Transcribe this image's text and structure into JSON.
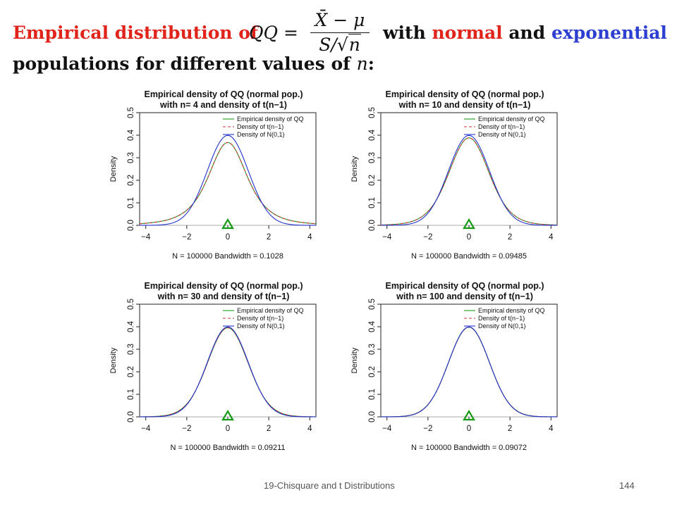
{
  "slide": {
    "title_part1": "Empirical distribution of",
    "formula_lhs": "QQ =",
    "formula_num": "X̄ − μ",
    "formula_den_s": "S/",
    "formula_den_sqrt": "√",
    "formula_den_n": "n",
    "title_with": "with",
    "title_normal": "normal",
    "title_and": "and",
    "title_exponential": "exponential",
    "title_line2": "populations for different values of",
    "title_line2_var": "n",
    "title_line2_colon": ":"
  },
  "footer": {
    "left": "19-Chisquare and t Distributions",
    "right": "144"
  },
  "colors": {
    "empirical": "#1a9a1a",
    "t_density": "#cc3333",
    "normal": "#2233cc",
    "triangle": "#119911",
    "title_red": "#e0241b",
    "title_blue": "#2c3fd1"
  },
  "chart_data": [
    {
      "type": "line",
      "title": "Empirical density of QQ (normal pop.)",
      "subtitle": "with n= 4  and density of t(n−1)",
      "xlabel": "N = 100000   Bandwidth = 0.1028",
      "ylabel": "Density",
      "xlim": [
        -4.3,
        4.3
      ],
      "ylim": [
        0,
        0.5
      ],
      "xticks": [
        -4,
        -2,
        0,
        2,
        4
      ],
      "yticks": [
        0.0,
        0.1,
        0.2,
        0.3,
        0.4,
        0.5
      ],
      "df": 3,
      "marker_x": 0,
      "legend": [
        "Empirical density of QQ",
        "Density of t(n−1)",
        "Density of N(0,1)"
      ],
      "legend_position": "top-right",
      "series": [
        {
          "name": "Empirical density of QQ",
          "x": [
            -4,
            -3,
            -2,
            -1,
            0,
            1,
            2,
            3,
            4
          ],
          "values": [
            0.004,
            0.023,
            0.068,
            0.207,
            0.368,
            0.207,
            0.068,
            0.023,
            0.004
          ]
        },
        {
          "name": "Density of t(n−1)",
          "x": [
            -4,
            -3,
            -2,
            -1,
            0,
            1,
            2,
            3,
            4
          ],
          "values": [
            0.004,
            0.023,
            0.068,
            0.207,
            0.368,
            0.207,
            0.068,
            0.023,
            0.004
          ]
        },
        {
          "name": "Density of N(0,1)",
          "x": [
            -4,
            -3,
            -2,
            -1,
            0,
            1,
            2,
            3,
            4
          ],
          "values": [
            0.0001,
            0.004,
            0.054,
            0.242,
            0.399,
            0.242,
            0.054,
            0.004,
            0.0001
          ]
        }
      ]
    },
    {
      "type": "line",
      "title": "Empirical density of QQ (normal pop.)",
      "subtitle": "with n= 10  and density of t(n−1)",
      "xlabel": "N = 100000   Bandwidth = 0.09485",
      "ylabel": "Density",
      "xlim": [
        -4.3,
        4.3
      ],
      "ylim": [
        0,
        0.5
      ],
      "xticks": [
        -4,
        -2,
        0,
        2,
        4
      ],
      "yticks": [
        0.0,
        0.1,
        0.2,
        0.3,
        0.4,
        0.5
      ],
      "df": 9,
      "marker_x": 0,
      "legend": [
        "Empirical density of QQ",
        "Density of t(n−1)",
        "Density of N(0,1)"
      ],
      "legend_position": "top-right",
      "series": [
        {
          "name": "Empirical density of QQ",
          "x": [
            -4,
            -3,
            -2,
            -1,
            0,
            1,
            2,
            3,
            4
          ],
          "values": [
            0.002,
            0.011,
            0.059,
            0.23,
            0.388,
            0.23,
            0.059,
            0.011,
            0.002
          ]
        },
        {
          "name": "Density of t(n−1)",
          "x": [
            -4,
            -3,
            -2,
            -1,
            0,
            1,
            2,
            3,
            4
          ],
          "values": [
            0.002,
            0.011,
            0.059,
            0.23,
            0.388,
            0.23,
            0.059,
            0.011,
            0.002
          ]
        },
        {
          "name": "Density of N(0,1)",
          "x": [
            -4,
            -3,
            -2,
            -1,
            0,
            1,
            2,
            3,
            4
          ],
          "values": [
            0.0001,
            0.004,
            0.054,
            0.242,
            0.399,
            0.242,
            0.054,
            0.004,
            0.0001
          ]
        }
      ]
    },
    {
      "type": "line",
      "title": "Empirical density of QQ (normal pop.)",
      "subtitle": "with n= 30  and density of t(n−1)",
      "xlabel": "N = 100000   Bandwidth = 0.09211",
      "ylabel": "Density",
      "xlim": [
        -4.3,
        4.3
      ],
      "ylim": [
        0,
        0.5
      ],
      "xticks": [
        -4,
        -2,
        0,
        2,
        4
      ],
      "yticks": [
        0.0,
        0.1,
        0.2,
        0.3,
        0.4,
        0.5
      ],
      "df": 29,
      "marker_x": 0,
      "legend": [
        "Empirical density of QQ",
        "Density of t(n−1)",
        "Density of N(0,1)"
      ],
      "legend_position": "top-right",
      "series": [
        {
          "name": "Empirical density of QQ",
          "x": [
            -4,
            -3,
            -2,
            -1,
            0,
            1,
            2,
            3,
            4
          ],
          "values": [
            0.0005,
            0.006,
            0.056,
            0.238,
            0.395,
            0.238,
            0.056,
            0.006,
            0.0005
          ]
        },
        {
          "name": "Density of t(n−1)",
          "x": [
            -4,
            -3,
            -2,
            -1,
            0,
            1,
            2,
            3,
            4
          ],
          "values": [
            0.0005,
            0.006,
            0.056,
            0.238,
            0.395,
            0.238,
            0.056,
            0.006,
            0.0005
          ]
        },
        {
          "name": "Density of N(0,1)",
          "x": [
            -4,
            -3,
            -2,
            -1,
            0,
            1,
            2,
            3,
            4
          ],
          "values": [
            0.0001,
            0.004,
            0.054,
            0.242,
            0.399,
            0.242,
            0.054,
            0.004,
            0.0001
          ]
        }
      ]
    },
    {
      "type": "line",
      "title": "Empirical density of QQ (normal pop.)",
      "subtitle": "with n= 100  and density of t(n−1)",
      "xlabel": "N = 100000   Bandwidth = 0.09072",
      "ylabel": "Density",
      "xlim": [
        -4.3,
        4.3
      ],
      "ylim": [
        0,
        0.5
      ],
      "xticks": [
        -4,
        -2,
        0,
        2,
        4
      ],
      "yticks": [
        0.0,
        0.1,
        0.2,
        0.3,
        0.4,
        0.5
      ],
      "df": 99,
      "marker_x": 0,
      "legend": [
        "Empirical density of QQ",
        "Density of t(n−1)",
        "Density of N(0,1)"
      ],
      "legend_position": "top-right",
      "series": [
        {
          "name": "Empirical density of QQ",
          "x": [
            -4,
            -3,
            -2,
            -1,
            0,
            1,
            2,
            3,
            4
          ],
          "values": [
            0.0002,
            0.005,
            0.055,
            0.241,
            0.398,
            0.241,
            0.055,
            0.005,
            0.0002
          ]
        },
        {
          "name": "Density of t(n−1)",
          "x": [
            -4,
            -3,
            -2,
            -1,
            0,
            1,
            2,
            3,
            4
          ],
          "values": [
            0.0002,
            0.005,
            0.055,
            0.241,
            0.398,
            0.241,
            0.055,
            0.005,
            0.0002
          ]
        },
        {
          "name": "Density of N(0,1)",
          "x": [
            -4,
            -3,
            -2,
            -1,
            0,
            1,
            2,
            3,
            4
          ],
          "values": [
            0.0001,
            0.004,
            0.054,
            0.242,
            0.399,
            0.242,
            0.054,
            0.004,
            0.0001
          ]
        }
      ]
    }
  ]
}
